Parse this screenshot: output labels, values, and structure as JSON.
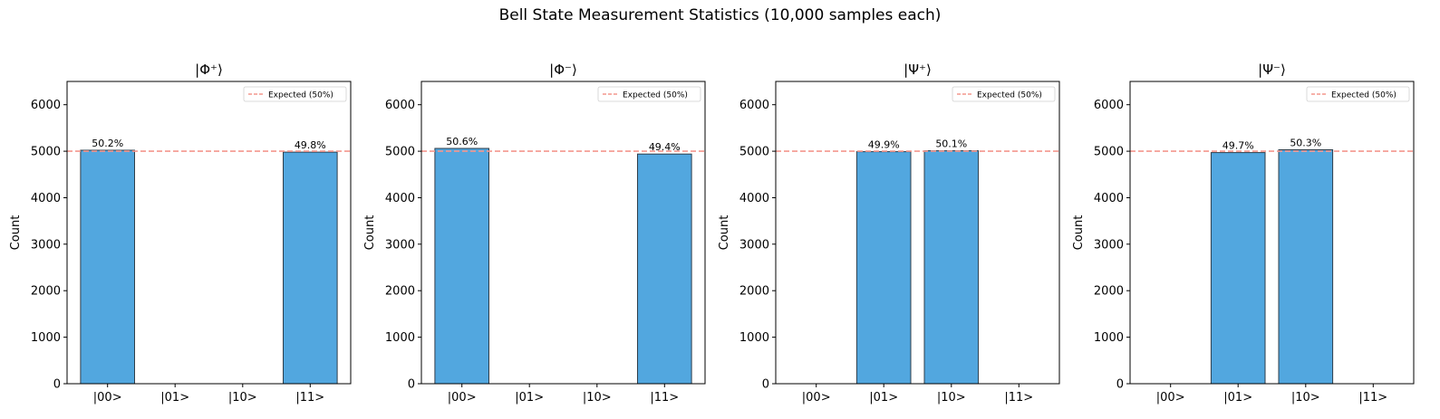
{
  "chart_data": {
    "title": "Bell State Measurement Statistics (10,000 samples each)",
    "type": "bar",
    "panels": [
      {
        "title": "|Φ⁺⟩",
        "categories": [
          "|00>",
          "|01>",
          "|10>",
          "|11>"
        ],
        "values": [
          5020,
          0,
          0,
          4980
        ],
        "labels": [
          "50.2%",
          "",
          "",
          "49.8%"
        ],
        "ylabel": "Count",
        "ylim": [
          0,
          6500
        ],
        "yticks": [
          0,
          1000,
          2000,
          3000,
          4000,
          5000,
          6000
        ],
        "expected": 5000,
        "legend": "Expected (50%)"
      },
      {
        "title": "|Φ⁻⟩",
        "categories": [
          "|00>",
          "|01>",
          "|10>",
          "|11>"
        ],
        "values": [
          5060,
          0,
          0,
          4940
        ],
        "labels": [
          "50.6%",
          "",
          "",
          "49.4%"
        ],
        "ylabel": "Count",
        "ylim": [
          0,
          6500
        ],
        "yticks": [
          0,
          1000,
          2000,
          3000,
          4000,
          5000,
          6000
        ],
        "expected": 5000,
        "legend": "Expected (50%)"
      },
      {
        "title": "|Ψ⁺⟩",
        "categories": [
          "|00>",
          "|01>",
          "|10>",
          "|11>"
        ],
        "values": [
          0,
          4990,
          5010,
          0
        ],
        "labels": [
          "",
          "49.9%",
          "50.1%",
          ""
        ],
        "ylabel": "Count",
        "ylim": [
          0,
          6500
        ],
        "yticks": [
          0,
          1000,
          2000,
          3000,
          4000,
          5000,
          6000
        ],
        "expected": 5000,
        "legend": "Expected (50%)"
      },
      {
        "title": "|Ψ⁻⟩",
        "categories": [
          "|00>",
          "|01>",
          "|10>",
          "|11>"
        ],
        "values": [
          0,
          4970,
          5030,
          0
        ],
        "labels": [
          "",
          "49.7%",
          "50.3%",
          ""
        ],
        "ylabel": "Count",
        "ylim": [
          0,
          6500
        ],
        "yticks": [
          0,
          1000,
          2000,
          3000,
          4000,
          5000,
          6000
        ],
        "expected": 5000,
        "legend": "Expected (50%)"
      }
    ],
    "colors": {
      "bar": "#52a7df",
      "bar_edge": "#2f3e4a",
      "expected_line": "#f4978e"
    }
  }
}
